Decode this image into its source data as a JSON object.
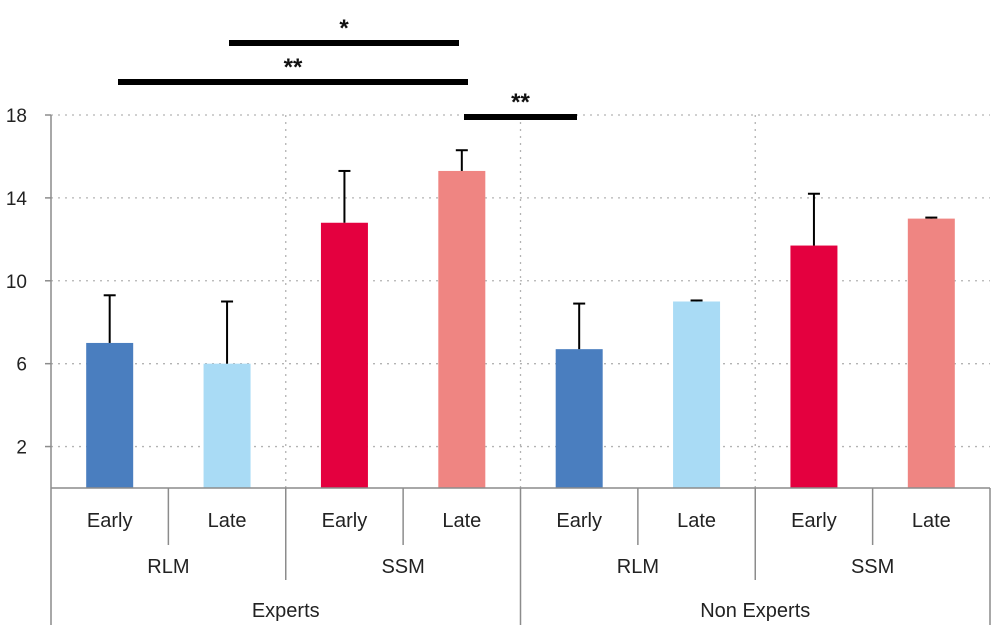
{
  "chart_data": {
    "type": "bar",
    "title": "",
    "xlabel": "",
    "ylabel": "",
    "ylim": [
      0,
      18
    ],
    "yticks": [
      2,
      6,
      10,
      14,
      18
    ],
    "grid": true,
    "bars": [
      {
        "group": "Experts",
        "model": "RLM",
        "phase": "Early",
        "value": 7.0,
        "error": 2.3,
        "color": "#4a7ebf"
      },
      {
        "group": "Experts",
        "model": "RLM",
        "phase": "Late",
        "value": 6.0,
        "error": 3.0,
        "color": "#a9dbf5"
      },
      {
        "group": "Experts",
        "model": "SSM",
        "phase": "Early",
        "value": 12.8,
        "error": 2.5,
        "color": "#e4003f"
      },
      {
        "group": "Experts",
        "model": "SSM",
        "phase": "Late",
        "value": 15.3,
        "error": 1.0,
        "color": "#ef8582"
      },
      {
        "group": "Non Experts",
        "model": "RLM",
        "phase": "Early",
        "value": 6.7,
        "error": 2.2,
        "color": "#4a7ebf"
      },
      {
        "group": "Non Experts",
        "model": "RLM",
        "phase": "Late",
        "value": 9.0,
        "error": 0.05,
        "color": "#a9dbf5"
      },
      {
        "group": "Non Experts",
        "model": "SSM",
        "phase": "Early",
        "value": 11.7,
        "error": 2.5,
        "color": "#e4003f"
      },
      {
        "group": "Non Experts",
        "model": "SSM",
        "phase": "Late",
        "value": 13.0,
        "error": 0.05,
        "color": "#ef8582"
      }
    ],
    "level2_labels": [
      "RLM",
      "SSM",
      "RLM",
      "SSM"
    ],
    "level3_labels": [
      "Experts",
      "Non Experts"
    ],
    "significance": [
      {
        "label": "**",
        "from_bar": 0,
        "to_bar": 3
      },
      {
        "label": "*",
        "from_bar": 1,
        "to_bar": 3
      },
      {
        "label": "**",
        "from_bar": 3,
        "to_bar": 4
      }
    ]
  }
}
